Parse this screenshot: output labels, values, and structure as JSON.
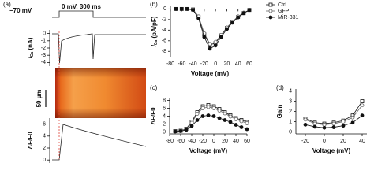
{
  "chart_data": [
    {
      "type": "trace",
      "panel": "(a)",
      "annotations": [
        "−70 mV",
        "0 mV, 300 ms"
      ],
      "ylabel": {
        "main": "I",
        "sub": "Ca",
        "rest": " (nA)"
      },
      "ylim": [
        -4.5,
        0.5
      ],
      "yticks": [
        0,
        -1,
        -2,
        -3,
        -4
      ]
    },
    {
      "type": "trace",
      "scale_bar": "50 µm",
      "ylabel": "ΔF/F0",
      "ylim": [
        -0.5,
        7
      ],
      "yticks": [
        0,
        2,
        4,
        6
      ]
    },
    {
      "type": "line",
      "panel": "(b)",
      "xlabel": "Voltage (mV)",
      "ylabel": {
        "main": "I",
        "sub": "Ca",
        "rest": " (pA/pF)"
      },
      "x": [
        -70,
        -60,
        -50,
        -40,
        -30,
        -20,
        -10,
        0,
        10,
        20,
        30,
        40,
        50,
        60
      ],
      "xlim": [
        -80,
        60
      ],
      "xticks": [
        -80,
        -60,
        -40,
        -20,
        0,
        20,
        40,
        60
      ],
      "ylim": [
        -9,
        0.5
      ],
      "yticks": [
        0,
        -2,
        -4,
        -6,
        -8
      ],
      "series": [
        {
          "name": "Ctrl",
          "color": "#111111",
          "marker": "square-open",
          "values": [
            0,
            0,
            0,
            -0.1,
            -1.5,
            -4.8,
            -6.8,
            -6.4,
            -5.0,
            -3.6,
            -2.5,
            -1.5,
            -0.8,
            -0.2
          ]
        },
        {
          "name": "GFP",
          "color": "#666666",
          "marker": "circle-open",
          "values": [
            0,
            0,
            0,
            -0.1,
            -1.4,
            -4.6,
            -6.6,
            -6.2,
            -4.9,
            -3.5,
            -2.4,
            -1.4,
            -0.7,
            -0.2
          ]
        },
        {
          "name": "MiR-331",
          "color": "#111111",
          "marker": "circle-filled",
          "values": [
            0,
            0,
            0,
            -0.2,
            -1.8,
            -5.3,
            -7.5,
            -6.9,
            -5.3,
            -3.8,
            -2.6,
            -1.6,
            -0.8,
            -0.2
          ]
        }
      ]
    },
    {
      "type": "line",
      "panel": "(c)",
      "xlabel": "Voltage (mV)",
      "ylabel": "ΔF/F0",
      "x": [
        -70,
        -60,
        -50,
        -40,
        -30,
        -20,
        -10,
        0,
        10,
        20,
        30,
        40,
        50,
        60
      ],
      "xlim": [
        -80,
        60
      ],
      "xticks": [
        -80,
        -60,
        -40,
        -20,
        0,
        20,
        40,
        60
      ],
      "ylim": [
        -0.5,
        8.5
      ],
      "yticks": [
        0,
        2,
        4,
        6,
        8
      ],
      "series": [
        {
          "name": "Ctrl",
          "color": "#111111",
          "marker": "square-open",
          "values": [
            0.2,
            0.3,
            0.8,
            2.6,
            5.0,
            6.5,
            6.8,
            6.5,
            5.8,
            5.0,
            4.2,
            3.5,
            3.0,
            2.5
          ]
        },
        {
          "name": "GFP",
          "color": "#666666",
          "marker": "circle-open",
          "values": [
            0.2,
            0.3,
            0.7,
            2.3,
            4.6,
            6.0,
            6.3,
            6.0,
            5.4,
            4.7,
            3.9,
            3.2,
            2.7,
            2.2
          ]
        },
        {
          "name": "MiR-331",
          "color": "#111111",
          "marker": "circle-filled",
          "values": [
            0.1,
            0.2,
            0.5,
            1.5,
            3.0,
            4.0,
            4.2,
            4.0,
            3.5,
            3.0,
            2.5,
            1.8,
            1.2,
            0.7
          ]
        }
      ]
    },
    {
      "type": "line",
      "panel": "(d)",
      "xlabel": "Voltage (mV)",
      "ylabel": "Gain",
      "x": [
        -20,
        -10,
        0,
        10,
        20,
        30,
        40
      ],
      "xlim": [
        -30,
        45
      ],
      "xticks": [
        -20,
        0,
        20,
        40
      ],
      "ylim": [
        -0.2,
        4.2
      ],
      "yticks": [
        0,
        1,
        2,
        3,
        4
      ],
      "series": [
        {
          "name": "Ctrl",
          "color": "#111111",
          "marker": "square-open",
          "values": [
            1.3,
            0.9,
            0.8,
            0.9,
            1.1,
            1.6,
            3.0
          ]
        },
        {
          "name": "GFP",
          "color": "#666666",
          "marker": "circle-open",
          "values": [
            1.2,
            0.8,
            0.7,
            0.8,
            1.0,
            1.4,
            2.6
          ]
        },
        {
          "name": "MiR-331",
          "color": "#111111",
          "marker": "circle-filled",
          "values": [
            0.7,
            0.5,
            0.4,
            0.45,
            0.6,
            0.9,
            1.6
          ]
        }
      ]
    }
  ]
}
